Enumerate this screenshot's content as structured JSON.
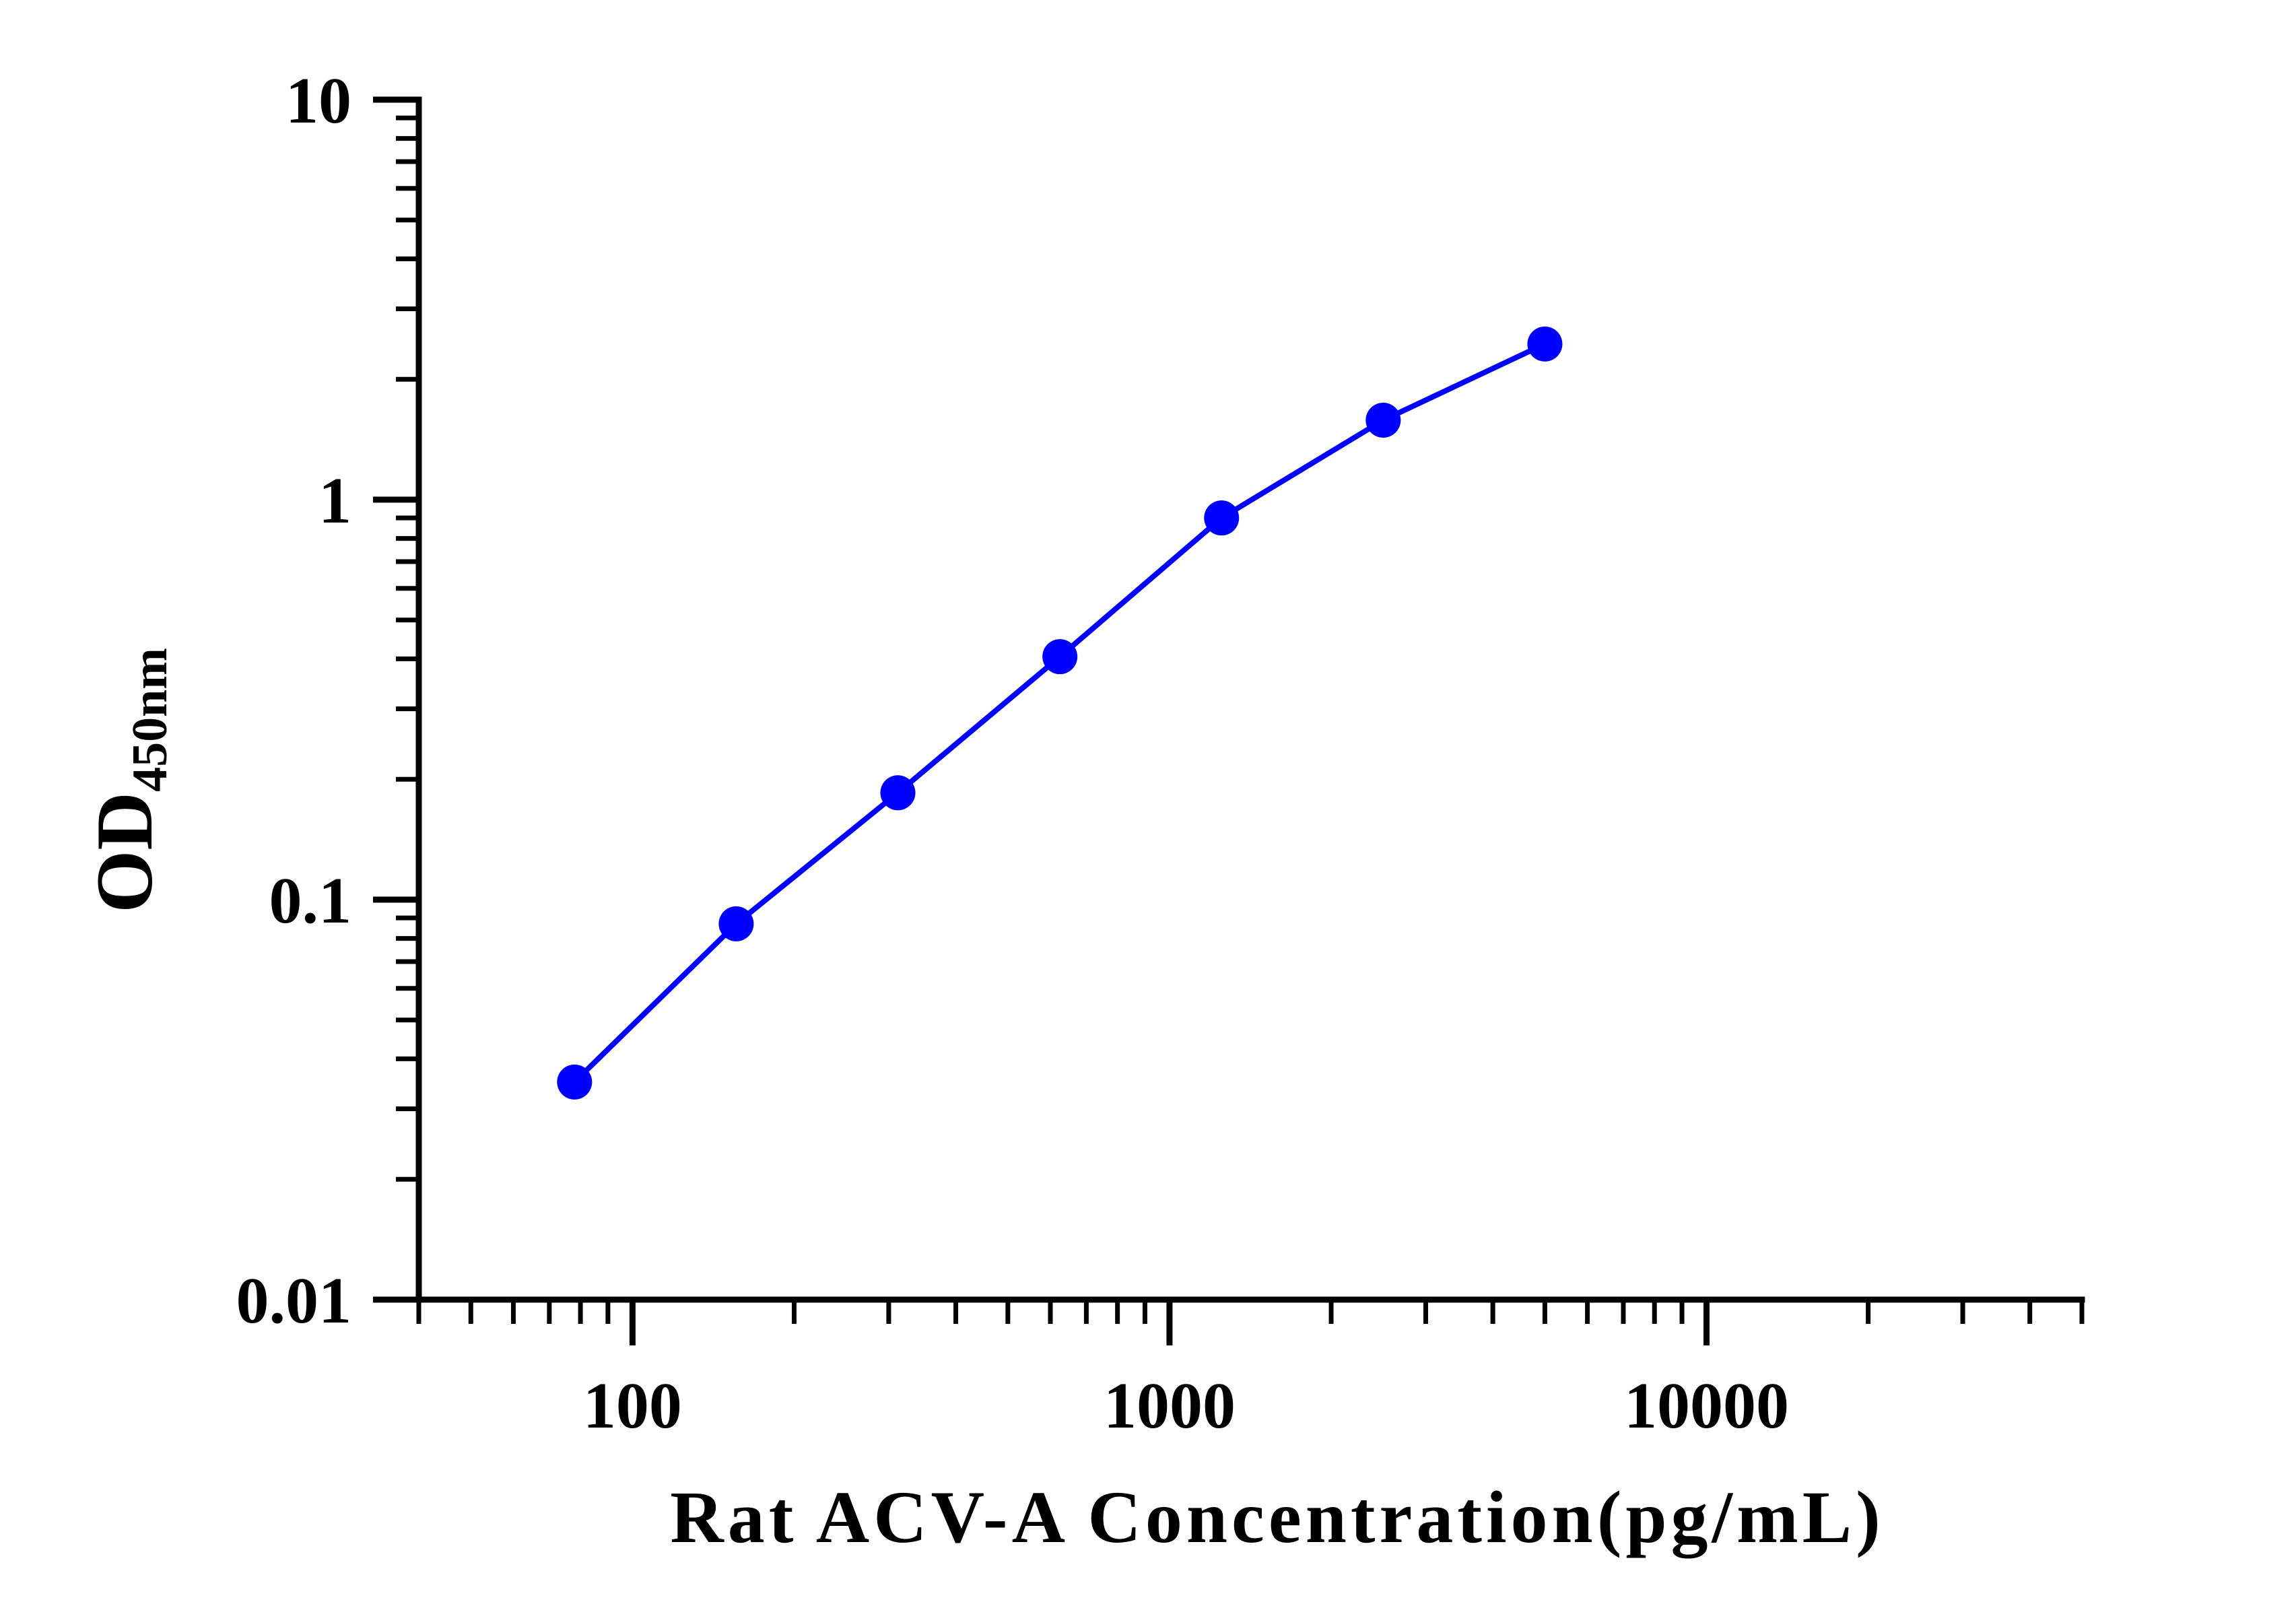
{
  "chart_data": {
    "type": "line",
    "title": "",
    "xlabel": "Rat ACV-A Concentration(pg/mL)",
    "ylabel": "OD",
    "ylabel_subscript": "450nm",
    "x_scale": "log",
    "y_scale": "log",
    "xlim": [
      40,
      50000
    ],
    "ylim": [
      0.01,
      10
    ],
    "x_ticks": [
      100,
      1000,
      10000
    ],
    "x_tick_labels": [
      "100",
      "1000",
      "10000"
    ],
    "y_ticks": [
      0.01,
      0.1,
      1,
      10
    ],
    "y_tick_labels": [
      "0.01",
      "0.1",
      "1",
      "10"
    ],
    "grid": false,
    "legend": false,
    "series": [
      {
        "color": "#0000ff",
        "marker": "circle",
        "x": [
          78,
          156,
          312,
          625,
          1250,
          2500,
          5000
        ],
        "y": [
          0.035,
          0.087,
          0.185,
          0.405,
          0.9,
          1.58,
          2.45
        ]
      }
    ]
  }
}
